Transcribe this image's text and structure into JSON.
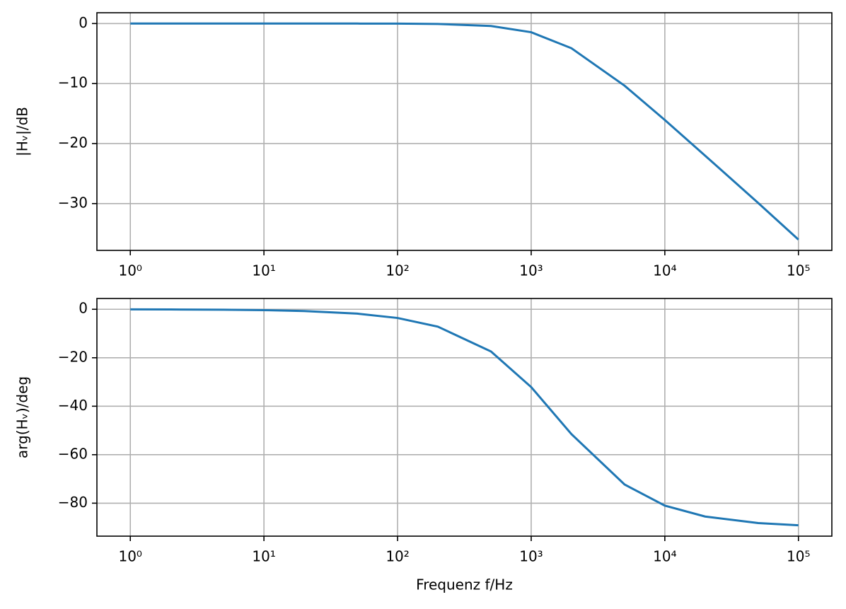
{
  "chart_data": [
    {
      "type": "line",
      "xscale": "log",
      "grid": true,
      "color": "#1f77b4",
      "ylabel": "|Hᵥ|/dB",
      "x": [
        1,
        2,
        5,
        10,
        20,
        50,
        100,
        200,
        500,
        1000,
        2000,
        5000,
        10000,
        20000,
        50000,
        100000
      ],
      "values": [
        0,
        0,
        0,
        -0.0002,
        -0.0007,
        -0.004,
        -0.017,
        -0.068,
        -0.41,
        -1.45,
        -4.11,
        -10.36,
        -16.07,
        -22.0,
        -29.9,
        -36.0
      ],
      "xlim": [
        0.5623,
        177828
      ],
      "xticks": [
        {
          "value": 1,
          "label": "10⁰"
        },
        {
          "value": 10,
          "label": "10¹"
        },
        {
          "value": 100,
          "label": "10²"
        },
        {
          "value": 1000,
          "label": "10³"
        },
        {
          "value": 10000,
          "label": "10⁴"
        },
        {
          "value": 100000,
          "label": "10⁵"
        }
      ],
      "ylim": [
        -37.8,
        1.8
      ],
      "yticks": [
        0,
        {
          "value": -10,
          "label": "−10"
        },
        {
          "value": -20,
          "label": "−20"
        },
        {
          "value": -30,
          "label": "−30"
        }
      ]
    },
    {
      "type": "line",
      "xscale": "log",
      "grid": true,
      "color": "#1f77b4",
      "ylabel": "arg(Hᵥ)/deg",
      "xlabel": "Frequenz f/Hz",
      "x": [
        1,
        2,
        5,
        10,
        20,
        50,
        100,
        200,
        500,
        1000,
        2000,
        5000,
        10000,
        20000,
        50000,
        100000
      ],
      "values": [
        -0.036,
        -0.072,
        -0.18,
        -0.36,
        -0.72,
        -1.8,
        -3.59,
        -7.16,
        -17.4,
        -32.1,
        -51.5,
        -72.3,
        -81.0,
        -85.5,
        -88.2,
        -89.1
      ],
      "xlim": [
        0.5623,
        177828
      ],
      "xticks": [
        {
          "value": 1,
          "label": "10⁰"
        },
        {
          "value": 10,
          "label": "10¹"
        },
        {
          "value": 100,
          "label": "10²"
        },
        {
          "value": 1000,
          "label": "10³"
        },
        {
          "value": 10000,
          "label": "10⁴"
        },
        {
          "value": 100000,
          "label": "10⁵"
        }
      ],
      "ylim": [
        -93.6,
        4.45
      ],
      "yticks": [
        0,
        {
          "value": -20,
          "label": "−20"
        },
        {
          "value": -40,
          "label": "−40"
        },
        {
          "value": -60,
          "label": "−60"
        },
        {
          "value": -80,
          "label": "−80"
        }
      ]
    }
  ]
}
